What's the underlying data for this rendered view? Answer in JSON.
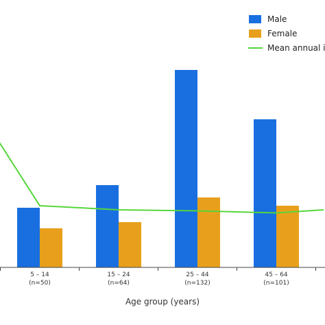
{
  "chart_data": {
    "type": "bar",
    "xlabel": "Age group (years)",
    "categories": [
      "5 – 14",
      "15 – 24",
      "25 – 44",
      "45 – 64",
      ""
    ],
    "category_counts": [
      "(n=50)",
      "(n=64)",
      "(n=132)",
      "(n=101)",
      ""
    ],
    "series": [
      {
        "name": "Male",
        "color": "#1a6fe0",
        "values": [
          29,
          40,
          96,
          72,
          null
        ]
      },
      {
        "name": "Female",
        "color": "#e8a01c",
        "values": [
          19,
          22,
          34,
          30,
          null
        ]
      }
    ],
    "line_series": {
      "name": "Mean annual ir",
      "color": "#55d63a",
      "points": [
        {
          "x": -0.6,
          "y": 66
        },
        {
          "x": 0,
          "y": 30
        },
        {
          "x": 1,
          "y": 28
        },
        {
          "x": 2,
          "y": 27.5
        },
        {
          "x": 3,
          "y": 26.5
        },
        {
          "x": 3.6,
          "y": 28
        }
      ]
    },
    "ylim": [
      0,
      100
    ],
    "legend_placement": "top-right",
    "grid": false
  }
}
